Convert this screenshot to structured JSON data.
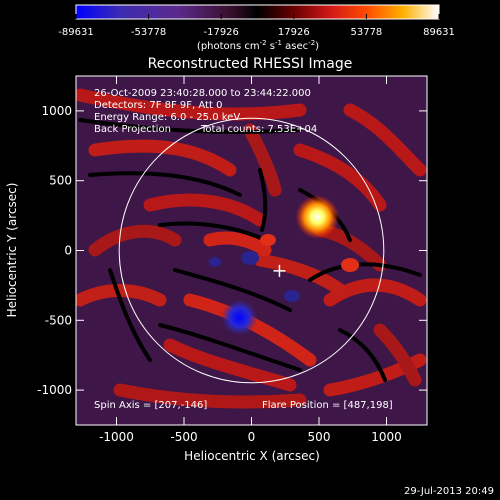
{
  "colors": {
    "background": "#000000",
    "foreground": "#ffffff",
    "colorbar_stops": [
      "#0000ff",
      "#3c2ab4",
      "#5a2a8c",
      "#3a1030",
      "#000000",
      "#400000",
      "#c01818",
      "#ff4000",
      "#ff9a00",
      "#ffff80",
      "#ffffff"
    ]
  },
  "chart_data": {
    "type": "heatmap",
    "title": "Reconstructed RHESSI Image",
    "xlabel": "Heliocentric X (arcsec)",
    "ylabel": "Heliocentric Y (arcsec)",
    "xlim": [
      -1300,
      1300
    ],
    "ylim": [
      -1250,
      1250
    ],
    "xticks": [
      -1000,
      -500,
      0,
      500,
      1000
    ],
    "yticks": [
      1000,
      500,
      0,
      -500,
      -1000
    ],
    "colorbar": {
      "label_prefix": "(photons cm",
      "label_sup1": "-2",
      "label_mid": " s",
      "label_sup2": "-1",
      "label_mid2": " asec",
      "label_sup3": "-2",
      "label_suffix": ")",
      "min": -89631,
      "max": 89631,
      "tick_labels": [
        "-89631",
        "-53778",
        "-17926",
        "17926",
        "53778",
        "89631"
      ]
    },
    "annotations": {
      "time_range": "26-Oct-2009 23:40:28.000 to 23:44:22.000",
      "detectors": "Detectors: 7F 8F 9F, Att 0",
      "energy_range": "Energy Range: 6.0 - 25.0 keV",
      "method": "Back Projection",
      "total_counts": "Total counts: 7.53E+04",
      "spin_axis": "Spin Axis = [207,-146]",
      "flare_position": "Flare Position = [487,198]",
      "plot_date": "29-Jul-2013 20:49"
    },
    "solar_limb": {
      "center": [
        0,
        0
      ],
      "radius": 980
    },
    "spin_axis_marker": [
      207,
      -146
    ],
    "features": [
      {
        "name": "bright-source",
        "x": 487,
        "y": 240,
        "level": 89631
      },
      {
        "name": "negative-source",
        "x": -90,
        "y": -480,
        "level": -89631
      }
    ]
  }
}
